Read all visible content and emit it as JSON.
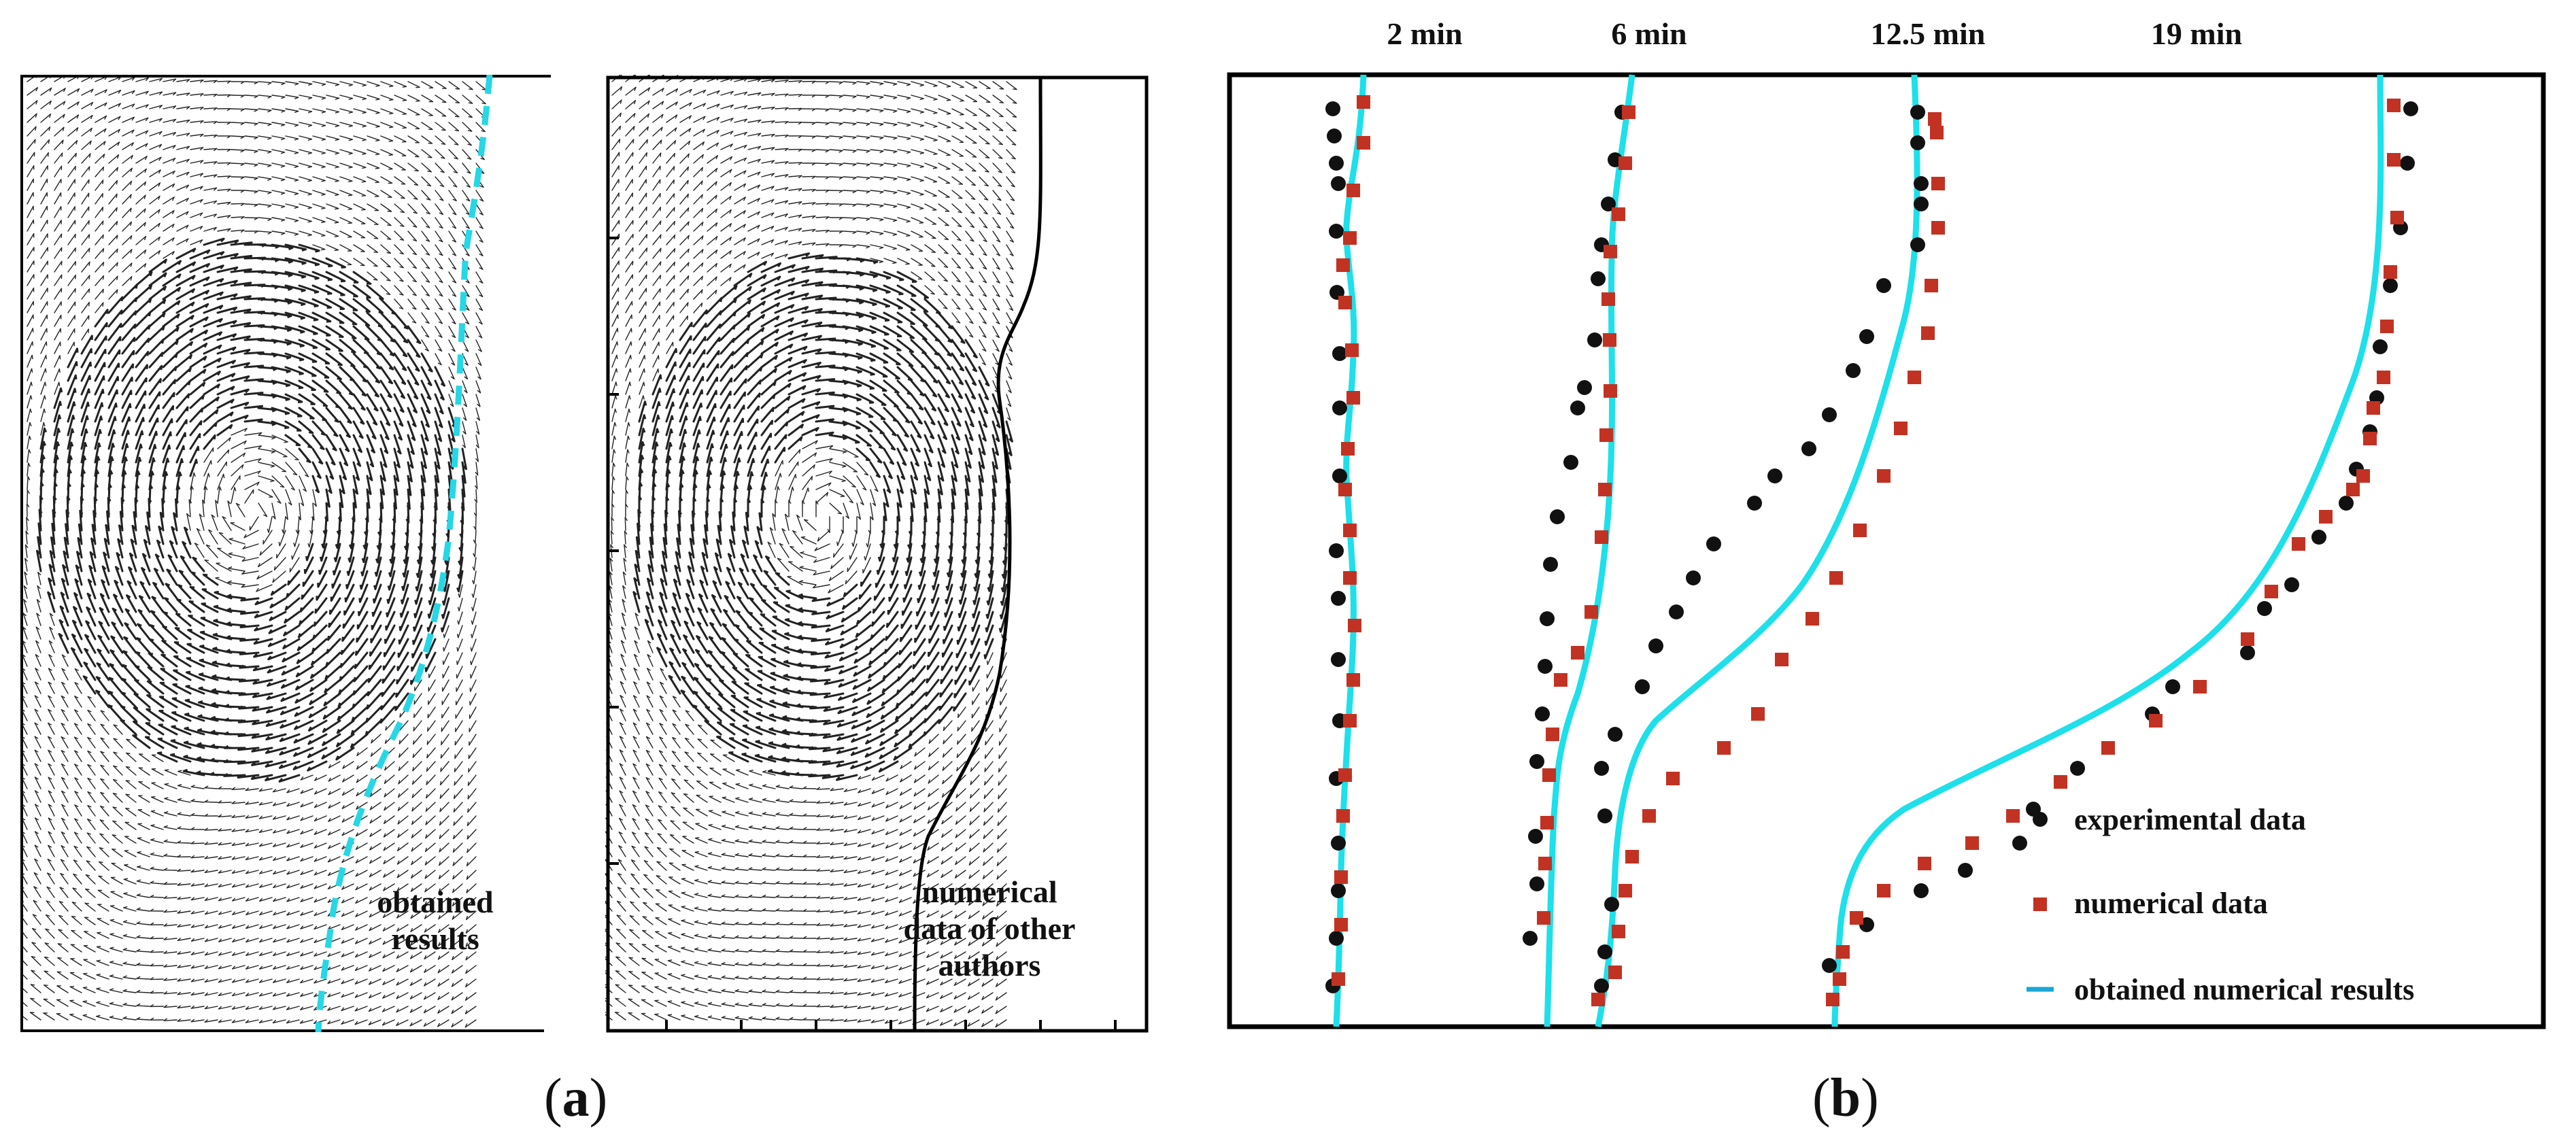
{
  "panel_a": {
    "label": "a",
    "left_plot_text": [
      "obtained",
      "results"
    ],
    "right_plot_text": [
      "numerical",
      "data of other",
      "authors"
    ]
  },
  "panel_b": {
    "label": "b",
    "time_labels": [
      "2 min",
      "6 min",
      "12.5 min",
      "19 min"
    ],
    "legend": {
      "experimental": "experimental data",
      "numerical": "numerical data",
      "obtained": "obtained numerical results"
    }
  },
  "colors": {
    "experimental_marker": "#111111",
    "numerical_marker": "#c23222",
    "obtained_curve": "#1de0ea",
    "vector_field": "#222222",
    "frame": "#000000"
  },
  "chart_data": {
    "type": "scatter",
    "description_of_axes": "no numeric axes are printed",
    "series": [
      {
        "name": "experimental data",
        "marker": "circle",
        "groups": [
          "2 min",
          "6 min",
          "12.5 min",
          "19 min"
        ]
      },
      {
        "name": "numerical data",
        "marker": "square",
        "groups": [
          "2 min",
          "6 min",
          "12.5 min",
          "19 min"
        ]
      },
      {
        "name": "obtained numerical results",
        "marker": "line",
        "groups": [
          "2 min",
          "6 min",
          "12.5 min",
          "19 min"
        ]
      }
    ],
    "grid": false,
    "legend_position": "bottom-right"
  }
}
